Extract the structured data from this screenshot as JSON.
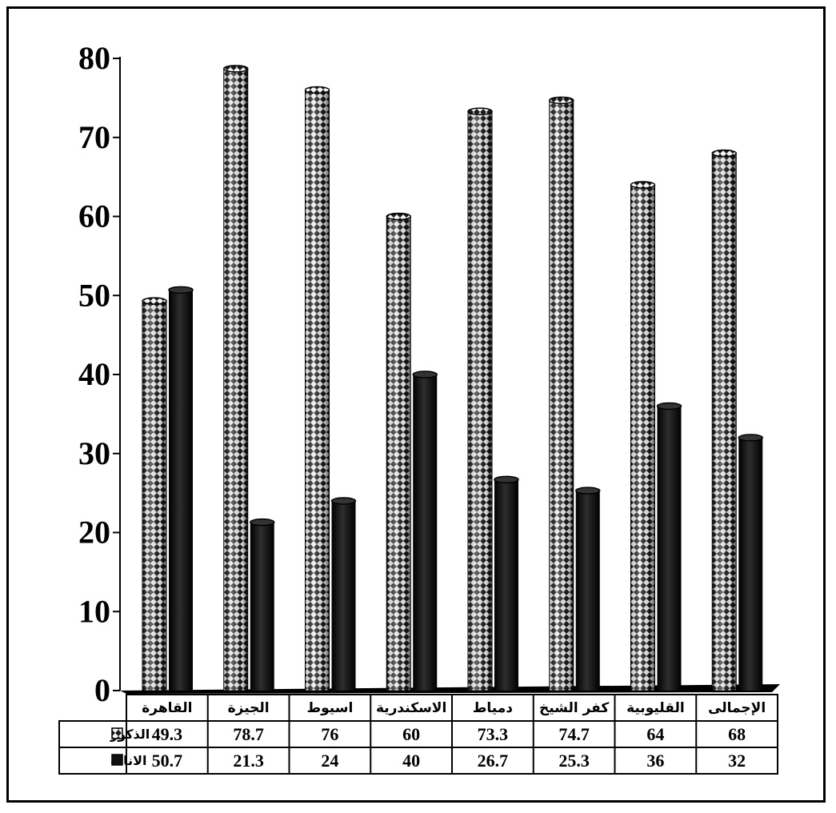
{
  "chart_data": {
    "type": "bar",
    "title": "",
    "xlabel": "",
    "ylabel": "",
    "ylim": [
      0,
      80
    ],
    "yticks": [
      "0",
      "10",
      "20",
      "30",
      "40",
      "50",
      "60",
      "70",
      "80"
    ],
    "grid": false,
    "legend": "data-table-rows",
    "categories": [
      "القاهرة",
      "الجيزة",
      "اسيوط",
      "الاسكندرية",
      "دمياط",
      "كفر الشيخ",
      "القليوبية",
      "الإجمالى"
    ],
    "series": [
      {
        "name": "الذكور",
        "values": [
          49.3,
          78.7,
          76,
          60,
          73.3,
          74.7,
          64,
          68
        ],
        "labels": [
          "49.3",
          "78.7",
          "76",
          "60",
          "73.3",
          "74.7",
          "64",
          "68"
        ],
        "pattern": "checkered",
        "color": "#ffffff"
      },
      {
        "name": "الاناث",
        "values": [
          50.7,
          21.3,
          24,
          40,
          26.7,
          25.3,
          36,
          32
        ],
        "labels": [
          "50.7",
          "21.3",
          "24",
          "40",
          "26.7",
          "25.3",
          "36",
          "32"
        ],
        "pattern": "solid",
        "color": "#111111"
      }
    ]
  }
}
